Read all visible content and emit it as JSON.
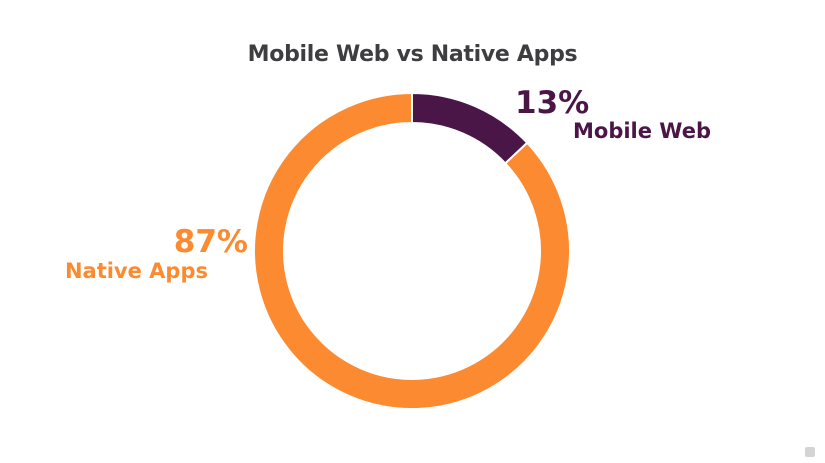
{
  "chart_data": {
    "type": "pie",
    "title": "Mobile Web vs Native Apps",
    "donut": true,
    "slices": [
      {
        "label": "Mobile Web",
        "value": 13,
        "display": "13%",
        "color": "#4a1547"
      },
      {
        "label": "Native Apps",
        "value": 87,
        "display": "87%",
        "color": "#fb8a30"
      }
    ]
  },
  "branding": {
    "watermark_logo": "udemy-logo-icon"
  }
}
